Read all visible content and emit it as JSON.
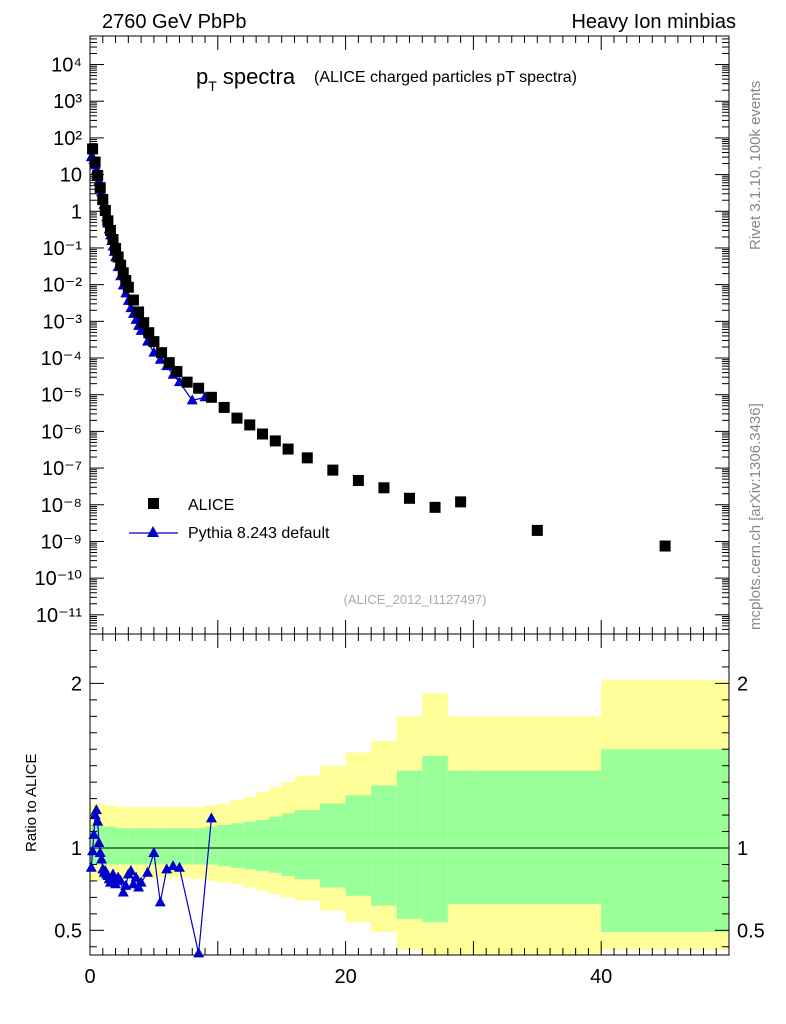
{
  "header": {
    "left": "2760 GeV PbPb",
    "right": "Heavy Ion minbias"
  },
  "title": {
    "main": "p",
    "sub": "T",
    "rest": " spectra",
    "paren": "(ALICE charged particles pT spectra)"
  },
  "side_labels": {
    "rivet": "Rivet 3.1.10,  100k events",
    "mcplots": "mcplots.cern.ch [arXiv:1306.3436]"
  },
  "analysis_ref": "(ALICE_2012_I1127497)",
  "legend": {
    "data": "ALICE",
    "mc": "Pythia 8.243 default"
  },
  "colors": {
    "data": "#000000",
    "mc": "#0000cc",
    "band_outer": "#ffff99",
    "band_inner": "#99ff99"
  },
  "chart_data": [
    {
      "type": "scatter",
      "log_y": true,
      "xlim": [
        0,
        50
      ],
      "ylim": [
        3e-12,
        60000.0
      ],
      "y_tick_labels": [
        "10⁻¹¹",
        "10⁻¹⁰",
        "10⁻⁹",
        "10⁻⁸",
        "10⁻⁷",
        "10⁻⁶",
        "10⁻⁵",
        "10⁻⁴",
        "10⁻³",
        "10⁻²",
        "10⁻¹",
        "1",
        "10",
        "10²",
        "10³",
        "10⁴"
      ],
      "y_tick_values": [
        1e-11,
        1e-10,
        1e-09,
        1e-08,
        1e-07,
        1e-06,
        1e-05,
        0.0001,
        0.001,
        0.01,
        0.1,
        1,
        10,
        100,
        1000,
        10000
      ],
      "series": [
        {
          "name": "ALICE",
          "x": [
            0.2,
            0.4,
            0.6,
            0.8,
            1.0,
            1.2,
            1.4,
            1.6,
            1.8,
            2.0,
            2.2,
            2.4,
            2.6,
            2.8,
            3.0,
            3.4,
            3.8,
            4.2,
            4.6,
            5.0,
            5.6,
            6.2,
            6.8,
            7.6,
            8.5,
            9.5,
            10.5,
            11.5,
            12.5,
            13.5,
            14.5,
            15.5,
            17,
            19,
            21,
            23,
            25,
            27,
            29,
            35,
            45
          ],
          "y": [
            50,
            22,
            9.5,
            4.4,
            2.1,
            1.05,
            0.55,
            0.3,
            0.17,
            0.097,
            0.057,
            0.034,
            0.021,
            0.013,
            0.0085,
            0.0038,
            0.0018,
            0.00092,
            0.00049,
            0.00028,
            0.00014,
            7.5e-05,
            4.3e-05,
            2.2e-05,
            1.5e-05,
            8.5e-06,
            4.5e-06,
            2.3e-06,
            1.5e-06,
            8.5e-07,
            5.5e-07,
            3.3e-07,
            1.9e-07,
            8.8e-08,
            4.6e-08,
            2.9e-08,
            1.5e-08,
            8.5e-09,
            1.2e-08,
            2e-09,
            7.5e-10
          ]
        },
        {
          "name": "Pythia 8.243 default",
          "x": [
            0.1,
            0.2,
            0.3,
            0.4,
            0.5,
            0.6,
            0.7,
            0.8,
            0.9,
            1.0,
            1.1,
            1.2,
            1.3,
            1.4,
            1.5,
            1.6,
            1.7,
            1.8,
            1.9,
            2.0,
            2.2,
            2.4,
            2.6,
            2.8,
            3.0,
            3.2,
            3.4,
            3.6,
            3.8,
            4.0,
            4.5,
            5.0,
            5.5,
            6.0,
            6.5,
            7.0,
            8.0,
            9.0
          ],
          "y": [
            30,
            30,
            25,
            18,
            13,
            9.5,
            6.8,
            4.7,
            3.3,
            2.2,
            1.5,
            1.0,
            0.68,
            0.46,
            0.32,
            0.22,
            0.155,
            0.11,
            0.078,
            0.056,
            0.03,
            0.017,
            0.0095,
            0.0058,
            0.0036,
            0.0023,
            0.0016,
            0.0011,
            0.00075,
            0.00055,
            0.00028,
            0.00014,
            9e-05,
            6e-05,
            3.5e-05,
            2.2e-05,
            7e-06,
            8.5e-06
          ]
        }
      ]
    },
    {
      "type": "line",
      "ylabel": "Ratio to ALICE",
      "xlim": [
        0,
        50
      ],
      "ylim": [
        0.35,
        2.3
      ],
      "x_tick_labels": [
        "0",
        "20",
        "40"
      ],
      "x_tick_values": [
        0,
        20,
        40
      ],
      "y_tick_labels": [
        "0.5",
        "1",
        "2"
      ],
      "y_tick_values": [
        0.5,
        1,
        2
      ],
      "series": [
        {
          "name": "Pythia 8.243 default",
          "x": [
            0.1,
            0.2,
            0.3,
            0.4,
            0.5,
            0.6,
            0.7,
            0.8,
            0.9,
            1.0,
            1.1,
            1.2,
            1.3,
            1.4,
            1.5,
            1.6,
            1.7,
            1.8,
            1.9,
            2.0,
            2.2,
            2.4,
            2.6,
            2.8,
            3.0,
            3.2,
            3.4,
            3.6,
            3.8,
            4.0,
            4.5,
            5.0,
            5.5,
            6.0,
            6.5,
            7.0,
            8.5,
            9.5
          ],
          "y": [
            0.88,
            0.98,
            1.08,
            1.2,
            1.23,
            1.16,
            1.03,
            0.97,
            0.93,
            0.87,
            0.85,
            0.86,
            0.84,
            0.83,
            0.81,
            0.79,
            0.82,
            0.84,
            0.82,
            0.78,
            0.82,
            0.8,
            0.73,
            0.77,
            0.84,
            0.86,
            0.78,
            0.82,
            0.76,
            0.79,
            0.85,
            0.97,
            0.67,
            0.87,
            0.89,
            0.88,
            0.36,
            1.18
          ]
        }
      ],
      "band_edges": [
        0,
        1,
        2,
        3,
        4,
        5,
        6,
        7,
        8,
        9,
        10,
        11,
        12,
        13,
        14,
        15,
        16,
        18,
        20,
        22,
        24,
        26,
        28,
        30,
        40,
        50
      ],
      "band_outer_up": [
        1.27,
        1.26,
        1.25,
        1.25,
        1.25,
        1.25,
        1.25,
        1.25,
        1.25,
        1.26,
        1.27,
        1.29,
        1.31,
        1.34,
        1.37,
        1.4,
        1.44,
        1.5,
        1.58,
        1.65,
        1.8,
        1.94,
        1.8,
        1.8,
        2.02,
        2.02
      ],
      "band_outer_dn": [
        0.8,
        0.81,
        0.81,
        0.82,
        0.82,
        0.82,
        0.82,
        0.82,
        0.81,
        0.8,
        0.79,
        0.78,
        0.76,
        0.74,
        0.72,
        0.7,
        0.68,
        0.62,
        0.55,
        0.49,
        0.38,
        0.34,
        0.34,
        0.34,
        0.38,
        0.38
      ],
      "band_inner_up": [
        1.14,
        1.13,
        1.12,
        1.12,
        1.12,
        1.12,
        1.12,
        1.12,
        1.12,
        1.13,
        1.14,
        1.15,
        1.16,
        1.17,
        1.19,
        1.21,
        1.23,
        1.27,
        1.32,
        1.38,
        1.47,
        1.56,
        1.47,
        1.47,
        1.6,
        1.6
      ],
      "band_inner_dn": [
        0.9,
        0.9,
        0.9,
        0.9,
        0.9,
        0.9,
        0.9,
        0.9,
        0.9,
        0.9,
        0.89,
        0.88,
        0.87,
        0.86,
        0.85,
        0.83,
        0.81,
        0.76,
        0.71,
        0.65,
        0.57,
        0.55,
        0.66,
        0.66,
        0.49,
        0.49
      ]
    }
  ]
}
